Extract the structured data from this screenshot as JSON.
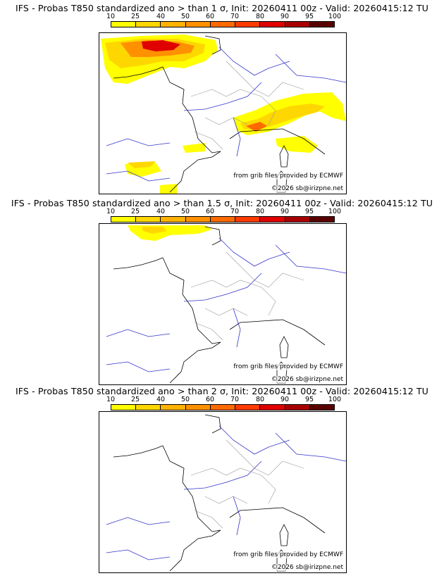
{
  "colorbar": {
    "ticks": [
      "10",
      "25",
      "40",
      "50",
      "60",
      "70",
      "80",
      "90",
      "95",
      "100"
    ],
    "colors": [
      "#ffff00",
      "#ffd700",
      "#ffb300",
      "#ff9100",
      "#ff6a00",
      "#ff3b00",
      "#e00000",
      "#a80000",
      "#5a0000"
    ]
  },
  "panels": [
    {
      "title": "IFS - Probas T850  standardized ano > than 1 σ, Init: 20260411 00z - Valid: 20260415:12 TU",
      "credit_source": "from grib files provided by ECMWF",
      "credit_copyright": "©2026 sb@irizpne.net"
    },
    {
      "title": "IFS - Probas T850  standardized ano > than 1.5 σ, Init: 20260411 00z - Valid: 20260415:12 TU",
      "credit_source": "from grib files provided by ECMWF",
      "credit_copyright": "©2026 sb@irizpne.net"
    },
    {
      "title": "IFS - Probas T850  standardized ano > than 2 σ, Init: 20260411 00z - Valid: 20260415:12 TU",
      "credit_source": "from grib files provided by ECMWF",
      "credit_copyright": "©2026 sb@irizpne.net"
    }
  ]
}
